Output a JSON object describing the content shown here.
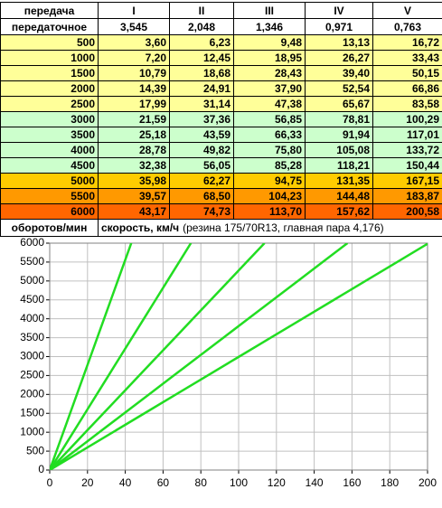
{
  "table": {
    "header": [
      [
        "передача",
        "I",
        "II",
        "III",
        "IV",
        "V"
      ],
      [
        "передаточное",
        "3,545",
        "2,048",
        "1,346",
        "0,971",
        "0,763"
      ]
    ],
    "rows": [
      {
        "color": "#ffff99",
        "cells": [
          "500",
          "3,60",
          "6,23",
          "9,48",
          "13,13",
          "16,72"
        ]
      },
      {
        "color": "#ffff99",
        "cells": [
          "1000",
          "7,20",
          "12,45",
          "18,95",
          "26,27",
          "33,43"
        ]
      },
      {
        "color": "#ffff99",
        "cells": [
          "1500",
          "10,79",
          "18,68",
          "28,43",
          "39,40",
          "50,15"
        ]
      },
      {
        "color": "#ffff99",
        "cells": [
          "2000",
          "14,39",
          "24,91",
          "37,90",
          "52,54",
          "66,86"
        ]
      },
      {
        "color": "#ffff99",
        "cells": [
          "2500",
          "17,99",
          "31,14",
          "47,38",
          "65,67",
          "83,58"
        ]
      },
      {
        "color": "#ccffcc",
        "cells": [
          "3000",
          "21,59",
          "37,36",
          "56,85",
          "78,81",
          "100,29"
        ]
      },
      {
        "color": "#ccffcc",
        "cells": [
          "3500",
          "25,18",
          "43,59",
          "66,33",
          "91,94",
          "117,01"
        ]
      },
      {
        "color": "#ccffcc",
        "cells": [
          "4000",
          "28,78",
          "49,82",
          "75,80",
          "105,08",
          "133,72"
        ]
      },
      {
        "color": "#ccffcc",
        "cells": [
          "4500",
          "32,38",
          "56,05",
          "85,28",
          "118,21",
          "150,44"
        ]
      },
      {
        "color": "#ffcc00",
        "cells": [
          "5000",
          "35,98",
          "62,27",
          "94,75",
          "131,35",
          "167,15"
        ]
      },
      {
        "color": "#ff9900",
        "cells": [
          "5500",
          "39,57",
          "68,50",
          "104,23",
          "144,48",
          "183,87"
        ]
      },
      {
        "color": "#ff6600",
        "cells": [
          "6000",
          "43,17",
          "74,73",
          "113,70",
          "157,62",
          "200,58"
        ]
      }
    ],
    "footer": [
      "оборотов/мин",
      "скорость, км/ч",
      "(резина 175/70R13, главная пара 4,176)"
    ]
  },
  "chart_data": {
    "type": "line",
    "grid": true,
    "xlim": [
      0,
      200
    ],
    "xticks": [
      0,
      20,
      40,
      60,
      80,
      100,
      120,
      140,
      160,
      180,
      200
    ],
    "ylim": [
      0,
      6000
    ],
    "yticks": [
      0,
      500,
      1000,
      1500,
      2000,
      2500,
      3000,
      3500,
      4000,
      4500,
      5000,
      5500,
      6000
    ],
    "series": [
      {
        "color": "#22dd22",
        "x": [
          0,
          3.6,
          7.2,
          10.79,
          14.39,
          17.99,
          21.59,
          25.18,
          28.78,
          32.38,
          35.98,
          39.57,
          43.17
        ],
        "values": [
          0,
          500,
          1000,
          1500,
          2000,
          2500,
          3000,
          3500,
          4000,
          4500,
          5000,
          5500,
          6000
        ]
      },
      {
        "color": "#22dd22",
        "x": [
          0,
          6.23,
          12.45,
          18.68,
          24.91,
          31.14,
          37.36,
          43.59,
          49.82,
          56.05,
          62.27,
          68.5,
          74.73
        ],
        "values": [
          0,
          500,
          1000,
          1500,
          2000,
          2500,
          3000,
          3500,
          4000,
          4500,
          5000,
          5500,
          6000
        ]
      },
      {
        "color": "#22dd22",
        "x": [
          0,
          9.48,
          18.95,
          28.43,
          37.9,
          47.38,
          56.85,
          66.33,
          75.8,
          85.28,
          94.75,
          104.23,
          113.7
        ],
        "values": [
          0,
          500,
          1000,
          1500,
          2000,
          2500,
          3000,
          3500,
          4000,
          4500,
          5000,
          5500,
          6000
        ]
      },
      {
        "color": "#22dd22",
        "x": [
          0,
          13.13,
          26.27,
          39.4,
          52.54,
          65.67,
          78.81,
          91.94,
          105.08,
          118.21,
          131.35,
          144.48,
          157.62
        ],
        "values": [
          0,
          500,
          1000,
          1500,
          2000,
          2500,
          3000,
          3500,
          4000,
          4500,
          5000,
          5500,
          6000
        ]
      },
      {
        "color": "#22dd22",
        "x": [
          0,
          16.72,
          33.43,
          50.15,
          66.86,
          83.58,
          100.29,
          117.01,
          133.72,
          150.44,
          167.15,
          183.87,
          200.58
        ],
        "values": [
          0,
          500,
          1000,
          1500,
          2000,
          2500,
          3000,
          3500,
          4000,
          4500,
          5000,
          5500,
          6000
        ]
      }
    ]
  }
}
